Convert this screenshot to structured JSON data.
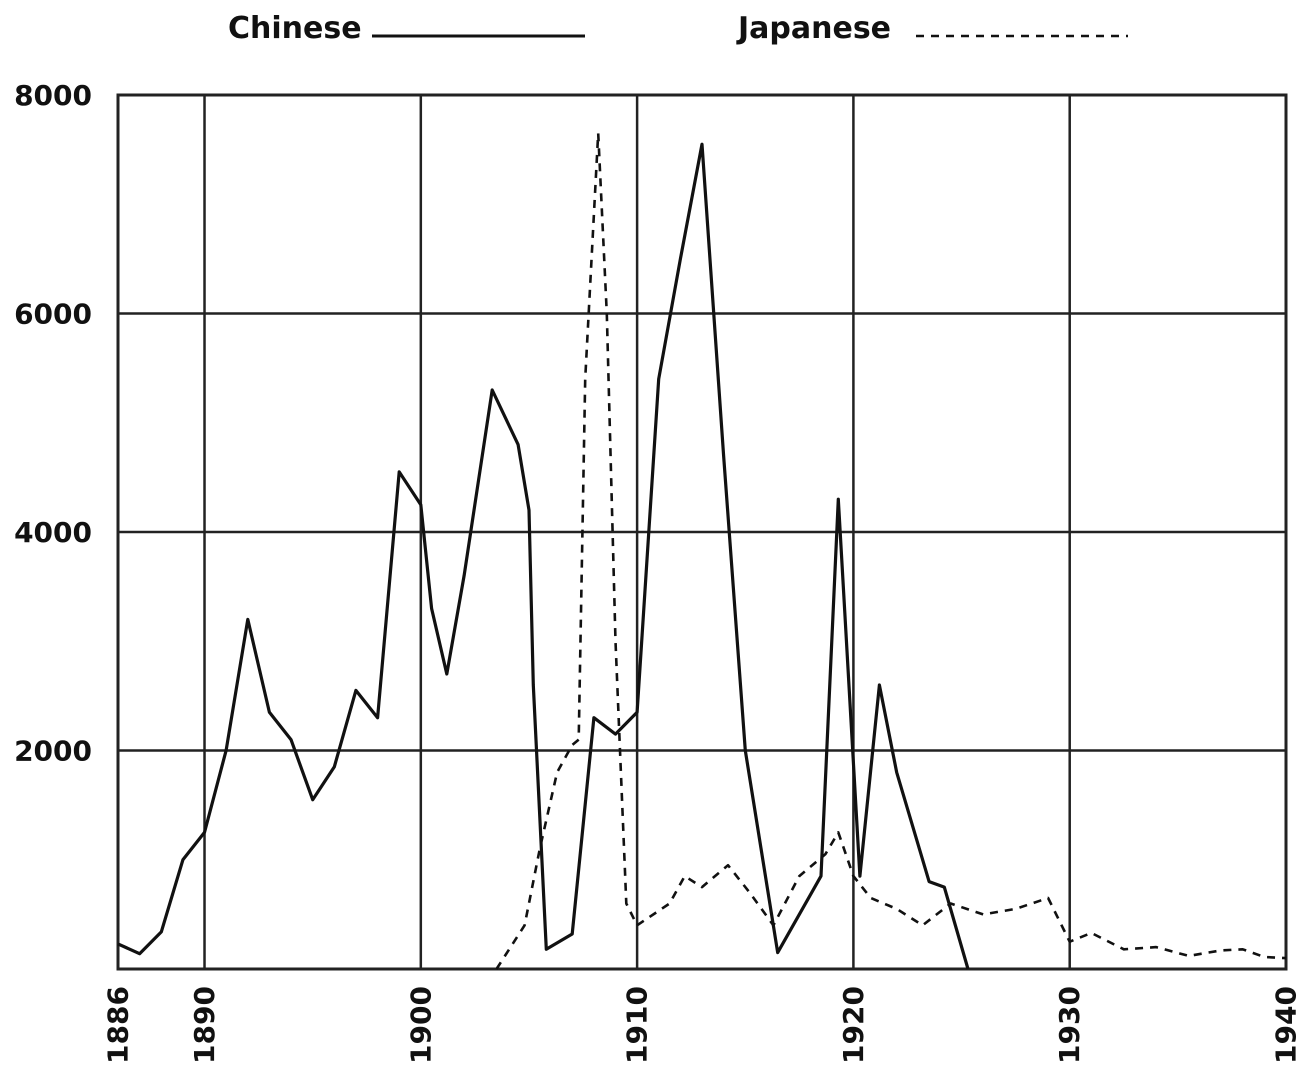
{
  "chart_data": {
    "type": "line",
    "title": "",
    "xlabel": "",
    "ylabel": "",
    "xlim": [
      1886,
      1940
    ],
    "ylim": [
      0,
      8000
    ],
    "x_ticks": [
      1886,
      1890,
      1900,
      1910,
      1920,
      1930,
      1940
    ],
    "y_ticks": [
      2000,
      4000,
      6000,
      8000
    ],
    "grid": true,
    "legend_position": "top",
    "series": [
      {
        "name": "Chinese",
        "style": "solid",
        "color": "#111111",
        "points": [
          [
            1886,
            230
          ],
          [
            1887,
            140
          ],
          [
            1888,
            340
          ],
          [
            1889,
            1000
          ],
          [
            1890,
            1250
          ],
          [
            1891,
            2000
          ],
          [
            1892,
            3200
          ],
          [
            1893,
            2350
          ],
          [
            1894,
            2100
          ],
          [
            1895,
            1550
          ],
          [
            1896,
            1850
          ],
          [
            1897,
            2550
          ],
          [
            1898,
            2300
          ],
          [
            1899,
            4550
          ],
          [
            1900,
            4250
          ],
          [
            1900.5,
            3300
          ],
          [
            1901.2,
            2700
          ],
          [
            1902,
            3600
          ],
          [
            1903.3,
            5300
          ],
          [
            1904.5,
            4800
          ],
          [
            1905,
            4200
          ],
          [
            1905.2,
            2600
          ],
          [
            1905.8,
            180
          ],
          [
            1907,
            320
          ],
          [
            1908,
            2300
          ],
          [
            1909,
            2150
          ],
          [
            1910,
            2350
          ],
          [
            1911,
            5400
          ],
          [
            1912,
            6500
          ],
          [
            1913,
            7550
          ],
          [
            1914,
            4700
          ],
          [
            1915,
            2000
          ],
          [
            1916.5,
            150
          ],
          [
            1918.5,
            850
          ],
          [
            1919.3,
            4300
          ],
          [
            1920.3,
            850
          ],
          [
            1921.2,
            2600
          ],
          [
            1922,
            1800
          ],
          [
            1923.5,
            800
          ],
          [
            1924.2,
            750
          ],
          [
            1925.3,
            0
          ]
        ]
      },
      {
        "name": "Japanese",
        "style": "dashed",
        "color": "#111111",
        "points": [
          [
            1903.5,
            0
          ],
          [
            1904.8,
            400
          ],
          [
            1905.5,
            1100
          ],
          [
            1906.3,
            1800
          ],
          [
            1907,
            2050
          ],
          [
            1907.3,
            2100
          ],
          [
            1907.6,
            5400
          ],
          [
            1908.2,
            7650
          ],
          [
            1908.6,
            6000
          ],
          [
            1909,
            3000
          ],
          [
            1909.5,
            600
          ],
          [
            1910,
            400
          ],
          [
            1911.5,
            600
          ],
          [
            1912.2,
            850
          ],
          [
            1913,
            750
          ],
          [
            1914.2,
            950
          ],
          [
            1915.2,
            700
          ],
          [
            1916.3,
            400
          ],
          [
            1917.5,
            850
          ],
          [
            1918.7,
            1050
          ],
          [
            1919.3,
            1250
          ],
          [
            1920,
            850
          ],
          [
            1920.8,
            650
          ],
          [
            1922,
            550
          ],
          [
            1923.2,
            400
          ],
          [
            1924.5,
            600
          ],
          [
            1926,
            500
          ],
          [
            1927.5,
            550
          ],
          [
            1929,
            650
          ],
          [
            1930,
            250
          ],
          [
            1931,
            330
          ],
          [
            1932.5,
            180
          ],
          [
            1934,
            200
          ],
          [
            1935.5,
            120
          ],
          [
            1937,
            170
          ],
          [
            1938,
            180
          ],
          [
            1939,
            110
          ],
          [
            1940,
            100
          ]
        ]
      }
    ]
  }
}
